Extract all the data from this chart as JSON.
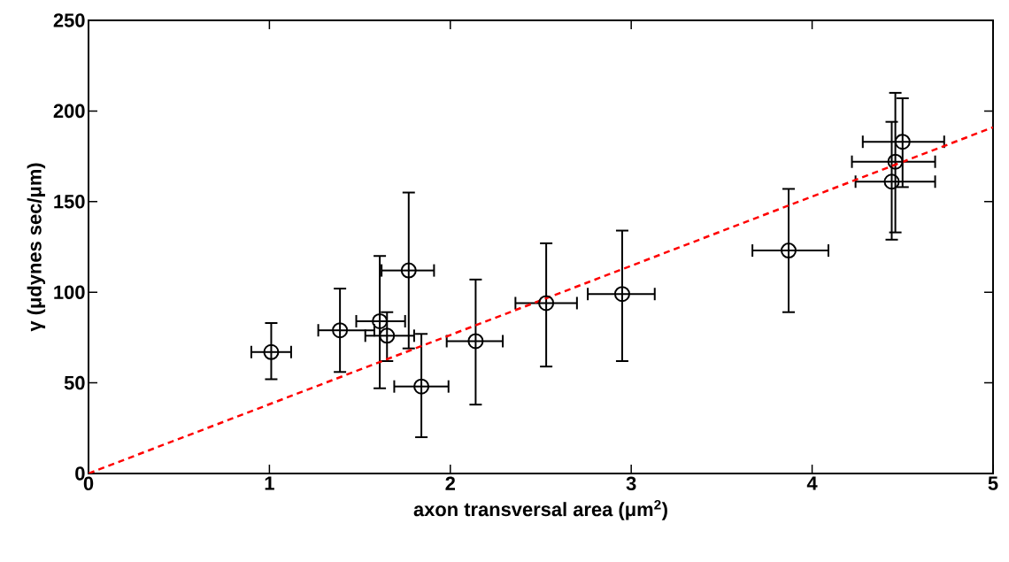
{
  "chart_data": {
    "type": "scatter",
    "xlabel": "axon transversal area (μm$^{2}$)",
    "ylabel": "γ (μdynes sec/μm)",
    "xlim": [
      0,
      5
    ],
    "ylim": [
      0,
      250
    ],
    "xticks": [
      0,
      1,
      2,
      3,
      4,
      5
    ],
    "yticks": [
      0,
      50,
      100,
      150,
      200,
      250
    ],
    "grid": false,
    "series": [
      {
        "color": "#000000",
        "marker": "circle",
        "line_style": "none",
        "x": [
          1.01,
          1.39,
          1.61,
          1.65,
          1.77,
          1.84,
          2.14,
          2.53,
          2.95,
          3.87,
          4.44,
          4.46,
          4.5
        ],
        "values": [
          67,
          79,
          84,
          76,
          112,
          48,
          73,
          94,
          99,
          123,
          161,
          172,
          183
        ],
        "errors": [
          [
            52,
            83
          ],
          [
            56,
            102
          ],
          [
            47,
            120
          ],
          [
            62,
            89
          ],
          [
            69,
            155
          ],
          [
            20,
            77
          ],
          [
            38,
            107
          ],
          [
            59,
            127
          ],
          [
            62,
            134
          ],
          [
            89,
            157
          ],
          [
            129,
            194
          ],
          [
            133,
            210
          ],
          [
            158,
            207
          ]
        ],
        "xerrors": [
          [
            0.9,
            1.12
          ],
          [
            1.27,
            1.58
          ],
          [
            1.48,
            1.75
          ],
          [
            1.53,
            1.8
          ],
          [
            1.62,
            1.91
          ],
          [
            1.69,
            1.99
          ],
          [
            1.98,
            2.29
          ],
          [
            2.36,
            2.7
          ],
          [
            2.76,
            3.13
          ],
          [
            3.67,
            4.09
          ],
          [
            4.24,
            4.68
          ],
          [
            4.22,
            4.68
          ],
          [
            4.28,
            4.73
          ]
        ]
      },
      {
        "type": "line",
        "color": "#ff0000",
        "marker": "none",
        "line_style": "dashed",
        "x": [
          0,
          5
        ],
        "values": [
          0,
          191
        ]
      }
    ]
  }
}
